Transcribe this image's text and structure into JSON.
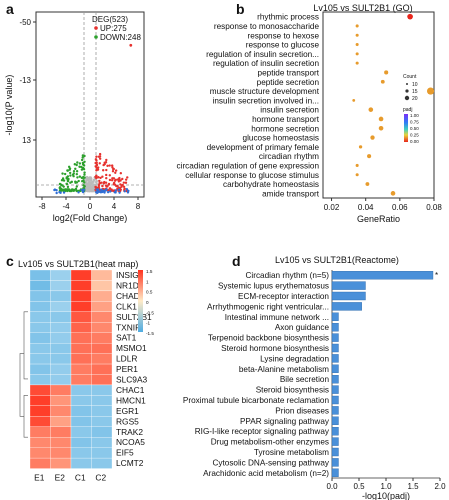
{
  "panels": {
    "a": "a",
    "b": "b",
    "c": "c",
    "d": "d"
  },
  "chart_data": [
    {
      "panel": "a",
      "type": "scatter",
      "title": "",
      "xlabel": "log2(Fold Change)",
      "ylabel": "-log10(P value)",
      "xticks": [
        "-8",
        "-4",
        "0",
        "4",
        "8"
      ],
      "xtick_values": [
        -8,
        -4,
        0,
        4,
        8
      ],
      "yticks": [
        "13",
        "-13",
        "-50"
      ],
      "xlim": [
        -9,
        9
      ],
      "legend": {
        "title": "DEG(523)",
        "entries": [
          {
            "name": "UP:275",
            "color": "#e6312e"
          },
          {
            "name": "DOWN:248",
            "color": "#2ca02c"
          }
        ]
      },
      "colors": {
        "up": "#e6312e",
        "down": "#2ca02c",
        "ns": "#bbbbbb",
        "blue": "#2f6fd6"
      },
      "outlier": {
        "x": 6.8,
        "y": 0.82
      }
    },
    {
      "panel": "b",
      "type": "scatter",
      "title": "Lv105 vs SULT2B1 (GO)",
      "xlabel": "GeneRatio",
      "xticks": [
        "0.02",
        "0.04",
        "0.06",
        "0.08"
      ],
      "xtick_values": [
        0.02,
        0.04,
        0.06,
        0.08
      ],
      "xlim": [
        0.015,
        0.08
      ],
      "categories": [
        "rhythmic process",
        "response to monosaccharide",
        "response to hexose",
        "response to glucose",
        "regulation of insulin secretion...",
        "regulation of insulin secretion",
        "peptide transport",
        "peptide secretion",
        "muscle structure development",
        "insulin secretion involved in...",
        "insulin secretion",
        "hormone transport",
        "hormone secretion",
        "glucose homeostasis",
        "development of primary female",
        "circadian rhythm",
        "circadian regulation of gene expression",
        "cellular response to glucose stimulus",
        "carbohydrate homeostasis",
        "amide transport"
      ],
      "x": [
        0.066,
        0.035,
        0.035,
        0.035,
        0.035,
        0.035,
        0.052,
        0.05,
        0.078,
        0.033,
        0.043,
        0.049,
        0.049,
        0.044,
        0.037,
        0.042,
        0.035,
        0.035,
        0.041,
        0.056
      ],
      "count": [
        16,
        6,
        6,
        6,
        6,
        6,
        10,
        9,
        22,
        5,
        12,
        12,
        12,
        11,
        7,
        10,
        6,
        6,
        9,
        12
      ],
      "padj_color": [
        "#e8251b",
        "#e79b2c",
        "#e79b2c",
        "#e79b2c",
        "#e79b2c",
        "#e79b2c",
        "#e79b2c",
        "#e79b2c",
        "#e79b2c",
        "#e79b2c",
        "#e79b2c",
        "#e79b2c",
        "#e79b2c",
        "#e79b2c",
        "#e79b2c",
        "#e79b2c",
        "#e79b2c",
        "#e79b2c",
        "#e79b2c",
        "#e79b2c"
      ],
      "size_legend": {
        "title": "Count",
        "labels": [
          "10",
          "15",
          "20"
        ]
      },
      "color_legend": {
        "title": "padj",
        "labels": [
          "1.00",
          "0.75",
          "0.50",
          "0.25",
          "0.00"
        ]
      }
    },
    {
      "panel": "c",
      "type": "heatmap",
      "title": "Lv105 vs SULT2B1(heat map)",
      "columns": [
        "E1",
        "E2",
        "C1",
        "C2"
      ],
      "rows": [
        "INSIG1",
        "NR1D1",
        "CHAD",
        "CLK1",
        "SULT2B1",
        "TXNIP",
        "SAT1",
        "MSMO1",
        "LDLR",
        "PER1",
        "SLC9A3",
        "CHAC1",
        "HMCN1",
        "EGR1",
        "RGS5",
        "TRAK2",
        "NCOA5",
        "EIF5",
        "LCMT2"
      ],
      "values": [
        [
          -1.0,
          -0.6,
          1.4,
          0.4
        ],
        [
          -1.1,
          -0.6,
          1.4,
          0.3
        ],
        [
          -0.9,
          -0.8,
          1.4,
          0.5
        ],
        [
          -0.9,
          -0.6,
          1.4,
          0.6
        ],
        [
          -0.8,
          -0.8,
          1.2,
          0.8
        ],
        [
          -0.8,
          -0.7,
          1.1,
          0.8
        ],
        [
          -0.9,
          -0.7,
          1.0,
          0.9
        ],
        [
          -0.8,
          -0.8,
          1.0,
          1.0
        ],
        [
          -0.8,
          -0.8,
          1.0,
          0.9
        ],
        [
          -0.9,
          -0.7,
          0.9,
          1.0
        ],
        [
          -0.8,
          -0.7,
          0.9,
          1.0
        ],
        [
          1.3,
          0.9,
          -0.8,
          -0.8
        ],
        [
          1.4,
          0.7,
          -0.8,
          -0.8
        ],
        [
          1.4,
          0.8,
          -0.9,
          -0.8
        ],
        [
          1.3,
          0.6,
          -0.9,
          -0.8
        ],
        [
          0.9,
          0.9,
          -0.8,
          -0.9
        ],
        [
          0.8,
          0.8,
          -0.9,
          -0.8
        ],
        [
          0.8,
          0.8,
          -0.8,
          -0.8
        ],
        [
          0.9,
          0.7,
          -0.8,
          -0.8
        ]
      ],
      "color_scale": {
        "labels": [
          "1.5",
          "1",
          "0.5",
          "0",
          "-0.5",
          "-1",
          "-1.5"
        ],
        "min": -1.5,
        "max": 1.5
      }
    },
    {
      "panel": "d",
      "type": "bar",
      "orientation": "horizontal",
      "title": "Lv105 vs SULT2B1(Reactome)",
      "xlabel": "-log10(padj)",
      "xticks": [
        "0.0",
        "0.5",
        "1.0",
        "1.5",
        "2.0"
      ],
      "xtick_values": [
        0,
        0.5,
        1.0,
        1.5,
        2.0
      ],
      "xlim": [
        0,
        2.0
      ],
      "categories": [
        "Circadian rhythm (n=5)",
        "Systemic lupus erythematosus",
        "ECM-receptor interaction",
        "Arrhythmogenic right ventricular...",
        "Intestinal immune network ...",
        "Axon guidance",
        "Terpenoid backbone biosynthesis",
        "Steroid hormone biosynthesis",
        "Lysine degradation",
        "beta-Alanine metabolism",
        "Bile secretion",
        "Steroid biosynthesis",
        "Proximal tubule bicarbonate reclamation",
        "Prion diseases",
        "PPAR signaling pathway",
        "RIG-I-like receptor signaling pathway",
        "Drug metabolism-other enzymes",
        "Tyrosine metabolism",
        "Cytosolic DNA-sensing pathway",
        "Arachidonic acid metabolism (n=2)"
      ],
      "values": [
        1.87,
        0.62,
        0.62,
        0.55,
        0.12,
        0.12,
        0.12,
        0.12,
        0.12,
        0.12,
        0.12,
        0.12,
        0.12,
        0.12,
        0.12,
        0.12,
        0.12,
        0.12,
        0.12,
        0.12
      ],
      "annotation": "*",
      "bar_color": "#4a90d9"
    }
  ]
}
